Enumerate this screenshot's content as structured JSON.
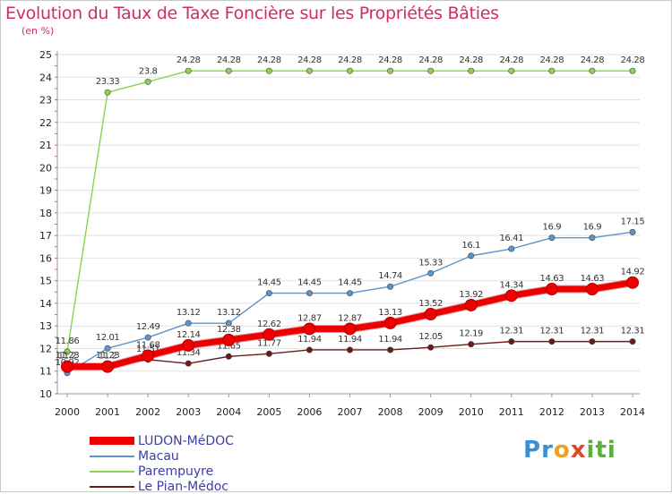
{
  "title": "Evolution du Taux de Taxe Foncière sur les Propriétés Bâties",
  "unit_label": "(en %)",
  "logo": {
    "letters": [
      "P",
      "r",
      "o",
      "x",
      "i",
      "t",
      "i"
    ],
    "colors": [
      "#3b8fd3",
      "#3b8fd3",
      "#f0a020",
      "#d84a2a",
      "#59b13b",
      "#59b13b",
      "#59b13b"
    ]
  },
  "chart_data": {
    "type": "line",
    "title": "Evolution du Taux de Taxe Foncière sur les Propriétés Bâties",
    "ylabel": "(en %)",
    "xlabel": "",
    "x": [
      "2000",
      "2001",
      "2002",
      "2003",
      "2004",
      "2005",
      "2006",
      "2007",
      "2008",
      "2009",
      "2010",
      "2011",
      "2012",
      "2013",
      "2014"
    ],
    "ylim": [
      10,
      25
    ],
    "yticks": [
      "10",
      "11",
      "12",
      "13",
      "14",
      "15",
      "16",
      "17",
      "18",
      "19",
      "20",
      "21",
      "22",
      "23",
      "24",
      "25"
    ],
    "grid": "horizontal",
    "legend_position": "bottom-left",
    "series": [
      {
        "name": "Le Pian-Médoc",
        "color": "#6b1a1a",
        "values": [
          11.23,
          11.23,
          11.51,
          11.34,
          11.65,
          11.77,
          11.94,
          11.94,
          11.94,
          12.05,
          12.19,
          12.31,
          12.31,
          12.31,
          12.31
        ],
        "labels": [
          "11.23",
          "11.23",
          "11.51",
          "11.34",
          "11.65",
          "11.77",
          "11.94",
          "11.94",
          "11.94",
          "12.05",
          "12.19",
          "12.31",
          "12.31",
          "12.31",
          "12.31"
        ]
      },
      {
        "name": "Macau",
        "color": "#5a95cc",
        "values": [
          10.92,
          12.01,
          12.49,
          13.12,
          13.12,
          14.45,
          14.45,
          14.45,
          14.74,
          15.33,
          16.1,
          16.41,
          16.9,
          16.9,
          17.15
        ],
        "labels": [
          "10.92",
          "12.01",
          "12.49",
          "13.12",
          "13.12",
          "14.45",
          "14.45",
          "14.45",
          "14.74",
          "15.33",
          "16.1",
          "16.41",
          "16.9",
          "16.9",
          "17.15"
        ]
      },
      {
        "name": "Parempuyre",
        "color": "#88d44e",
        "values": [
          11.86,
          23.33,
          23.8,
          24.28,
          24.28,
          24.28,
          24.28,
          24.28,
          24.28,
          24.28,
          24.28,
          24.28,
          24.28,
          24.28,
          24.28
        ],
        "labels": [
          "11.86",
          "23.33",
          "23.8",
          "24.28",
          "24.28",
          "24.28",
          "24.28",
          "24.28",
          "24.28",
          "24.28",
          "24.28",
          "24.28",
          "24.28",
          "24.28",
          "24.28"
        ]
      },
      {
        "name": "LUDON-MéDOC",
        "color": "#ee0000",
        "values": [
          11.2,
          11.2,
          11.68,
          12.14,
          12.38,
          12.62,
          12.87,
          12.87,
          13.13,
          13.52,
          13.92,
          14.34,
          14.63,
          14.63,
          14.92
        ],
        "labels": [
          "11.2",
          "11.2",
          "11.68",
          "12.14",
          "12.38",
          "12.62",
          "12.87",
          "12.87",
          "13.13",
          "13.52",
          "13.92",
          "14.34",
          "14.63",
          "14.63",
          "14.92"
        ]
      }
    ],
    "legend": [
      {
        "name": "LUDON-MéDOC",
        "color": "#ee0000"
      },
      {
        "name": "Macau",
        "color": "#5a95cc"
      },
      {
        "name": "Parempuyre",
        "color": "#88d44e"
      },
      {
        "name": "Le Pian-Médoc",
        "color": "#6b1a1a"
      }
    ]
  }
}
